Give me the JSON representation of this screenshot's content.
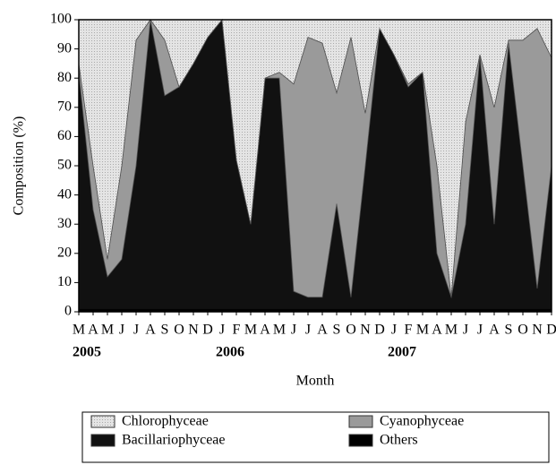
{
  "chart_data": {
    "type": "stacked_area",
    "x_label": "Month",
    "y_label": "Composition (%)",
    "categories": [
      "M",
      "A",
      "M",
      "J",
      "J",
      "A",
      "S",
      "O",
      "N",
      "D",
      "J",
      "F",
      "M",
      "A",
      "M",
      "J",
      "J",
      "A",
      "S",
      "O",
      "N",
      "D",
      "J",
      "F",
      "M",
      "A",
      "M",
      "J",
      "J",
      "A",
      "S",
      "O",
      "N",
      "D"
    ],
    "category_years": [
      "2005",
      null,
      null,
      null,
      null,
      null,
      null,
      null,
      null,
      null,
      "2006",
      null,
      null,
      null,
      null,
      null,
      null,
      null,
      null,
      null,
      null,
      null,
      "2007",
      null,
      null,
      null,
      null,
      null,
      null,
      null,
      null,
      null,
      null,
      null
    ],
    "ylim": [
      0,
      100
    ],
    "yticks": [
      0,
      10,
      20,
      30,
      40,
      50,
      60,
      70,
      80,
      90,
      100
    ],
    "legend_order": [
      3,
      2,
      1,
      0
    ],
    "series": [
      {
        "name": "Others",
        "color": "#000000",
        "values": [
          1,
          1,
          1,
          1,
          1,
          1,
          1,
          1,
          1,
          1,
          1,
          1,
          1,
          1,
          1,
          1,
          1,
          1,
          1,
          1,
          1,
          1,
          1,
          1,
          1,
          1,
          1,
          1,
          1,
          1,
          1,
          1,
          1,
          1
        ]
      },
      {
        "name": "Bacillariophyceae",
        "color": "#111111",
        "values": [
          81,
          34,
          11,
          17,
          49,
          99,
          73,
          76,
          84,
          93,
          99,
          51,
          29,
          79,
          79,
          6,
          4,
          4,
          36,
          4,
          49,
          96,
          87,
          76,
          81,
          19,
          4,
          29,
          87,
          29,
          91,
          49,
          7,
          49
        ]
      },
      {
        "name": "Cyanophyceae",
        "color": "#9a9a9a",
        "values": [
          3,
          15,
          6,
          32,
          43,
          0,
          19,
          0,
          0,
          0,
          0,
          0,
          0,
          0,
          2,
          71,
          89,
          87,
          38,
          89,
          18,
          0,
          0,
          1,
          0,
          30,
          0,
          35,
          0,
          40,
          1,
          43,
          89,
          37
        ]
      },
      {
        "name": "Chlorophyceae",
        "color": "#dcdcdc",
        "values": [
          15,
          50,
          82,
          50,
          7,
          0,
          7,
          23,
          15,
          6,
          0,
          48,
          70,
          20,
          18,
          22,
          6,
          8,
          25,
          6,
          32,
          3,
          12,
          22,
          18,
          50,
          95,
          35,
          12,
          30,
          7,
          7,
          3,
          13
        ]
      }
    ]
  }
}
